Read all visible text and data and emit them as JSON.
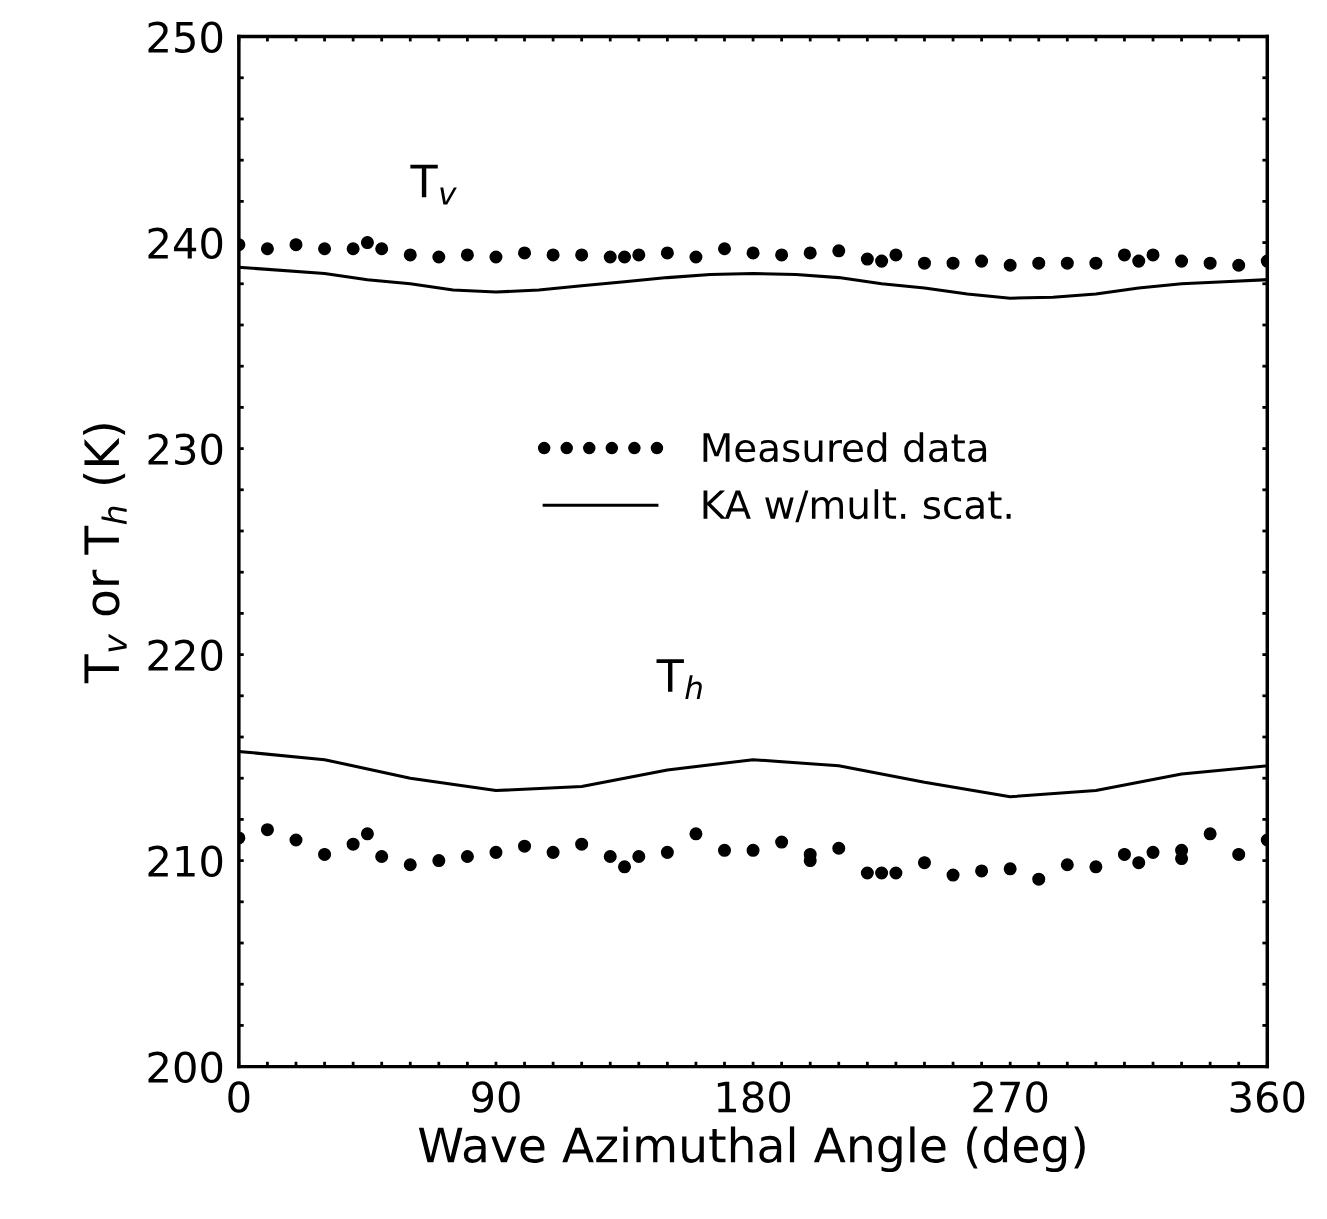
{
  "chart_data": {
    "type": "scatter",
    "xlabel": "Wave Azimuthal Angle (deg)",
    "ylabel": "T$_{v}$ or T$_{h}$ (K)",
    "xlim": [
      0,
      360
    ],
    "ylim": [
      200,
      250
    ],
    "xticks": [
      0,
      {
        "value": 10,
        "label": null
      },
      {
        "value": 20,
        "label": null
      },
      {
        "value": 30,
        "label": null
      },
      {
        "value": 40,
        "label": null
      },
      {
        "value": 50,
        "label": null
      },
      {
        "value": 60,
        "label": null
      },
      {
        "value": 70,
        "label": null
      },
      {
        "value": 80,
        "label": null
      },
      90,
      {
        "value": 100,
        "label": null
      },
      {
        "value": 110,
        "label": null
      },
      {
        "value": 120,
        "label": null
      },
      {
        "value": 130,
        "label": null
      },
      {
        "value": 140,
        "label": null
      },
      {
        "value": 150,
        "label": null
      },
      {
        "value": 160,
        "label": null
      },
      {
        "value": 170,
        "label": null
      },
      180,
      {
        "value": 190,
        "label": null
      },
      {
        "value": 200,
        "label": null
      },
      {
        "value": 210,
        "label": null
      },
      {
        "value": 220,
        "label": null
      },
      {
        "value": 230,
        "label": null
      },
      {
        "value": 240,
        "label": null
      },
      {
        "value": 250,
        "label": null
      },
      {
        "value": 260,
        "label": null
      },
      270,
      {
        "value": 280,
        "label": null
      },
      {
        "value": 290,
        "label": null
      },
      {
        "value": 300,
        "label": null
      },
      {
        "value": 310,
        "label": null
      },
      {
        "value": 320,
        "label": null
      },
      {
        "value": 330,
        "label": null
      },
      {
        "value": 340,
        "label": null
      },
      {
        "value": 350,
        "label": null
      },
      360
    ],
    "yticks": [
      200,
      {
        "value": 202,
        "label": null
      },
      {
        "value": 204,
        "label": null
      },
      {
        "value": 206,
        "label": null
      },
      {
        "value": 208,
        "label": null
      },
      210,
      {
        "value": 212,
        "label": null
      },
      {
        "value": 214,
        "label": null
      },
      {
        "value": 216,
        "label": null
      },
      {
        "value": 218,
        "label": null
      },
      220,
      {
        "value": 222,
        "label": null
      },
      {
        "value": 224,
        "label": null
      },
      {
        "value": 226,
        "label": null
      },
      {
        "value": 228,
        "label": null
      },
      230,
      {
        "value": 232,
        "label": null
      },
      {
        "value": 234,
        "label": null
      },
      {
        "value": 236,
        "label": null
      },
      {
        "value": 238,
        "label": null
      },
      240,
      {
        "value": 242,
        "label": null
      },
      {
        "value": 244,
        "label": null
      },
      {
        "value": 246,
        "label": null
      },
      {
        "value": 248,
        "label": null
      },
      250
    ],
    "grid": false,
    "legend": "center",
    "annotations": [
      "T$_{v}$",
      "T$_{h}$"
    ],
    "series": [
      {
        "name": "Measured data",
        "color": "#000000",
        "marker": "circle",
        "x": [
          0,
          10,
          20,
          30,
          40,
          45,
          50,
          60,
          70,
          80,
          90,
          100,
          110,
          120,
          130,
          135,
          140,
          150,
          160,
          170,
          180,
          190,
          200,
          210,
          220,
          225,
          230,
          240,
          250,
          260,
          270,
          280,
          290,
          300,
          310,
          315,
          320,
          330,
          340,
          350,
          360
        ],
        "values": [
          239.9,
          239.7,
          239.9,
          239.7,
          239.7,
          240.0,
          239.7,
          239.4,
          239.3,
          239.4,
          239.3,
          239.5,
          239.4,
          239.4,
          239.3,
          239.3,
          239.4,
          239.5,
          239.3,
          239.7,
          239.5,
          239.4,
          239.5,
          239.6,
          239.2,
          239.1,
          239.4,
          239.0,
          239.0,
          239.1,
          238.9,
          239.0,
          239.0,
          239.0,
          239.4,
          239.1,
          239.4,
          239.1,
          239.0,
          238.9,
          239.1
        ]
      },
      {
        "name": "KA w/mult. scat.",
        "type": "line",
        "color": "#000000",
        "marker": "none",
        "line_style": "solid",
        "x": [
          0,
          30,
          45,
          60,
          75,
          90,
          105,
          120,
          135,
          150,
          165,
          180,
          195,
          210,
          225,
          240,
          255,
          270,
          285,
          300,
          315,
          330,
          345,
          360
        ],
        "values": [
          238.8,
          238.5,
          238.2,
          238.0,
          237.7,
          237.6,
          237.7,
          237.9,
          238.1,
          238.3,
          238.45,
          238.5,
          238.45,
          238.3,
          238.0,
          237.8,
          237.5,
          237.3,
          237.35,
          237.5,
          237.8,
          238.0,
          238.1,
          238.2
        ]
      },
      {
        "color": "#000000",
        "marker": "circle",
        "x": [
          0,
          10,
          20,
          30,
          40,
          45,
          50,
          60,
          70,
          80,
          90,
          100,
          110,
          120,
          130,
          135,
          140,
          150,
          160,
          170,
          180,
          190,
          200,
          200,
          210,
          220,
          225,
          230,
          240,
          250,
          260,
          270,
          280,
          290,
          300,
          310,
          315,
          320,
          330,
          330,
          340,
          350,
          360
        ],
        "values": [
          211.1,
          211.5,
          211.0,
          210.3,
          210.8,
          211.3,
          210.2,
          209.8,
          210.0,
          210.2,
          210.4,
          210.7,
          210.4,
          210.8,
          210.2,
          209.7,
          210.2,
          210.4,
          211.3,
          210.5,
          210.5,
          210.9,
          210.3,
          210.0,
          210.6,
          209.4,
          209.4,
          209.4,
          209.9,
          209.3,
          209.5,
          209.6,
          209.1,
          209.8,
          209.7,
          210.3,
          209.9,
          210.4,
          210.5,
          210.1,
          211.3,
          210.3,
          211.0
        ]
      },
      {
        "type": "line",
        "color": "#000000",
        "marker": "none",
        "line_style": "solid",
        "x": [
          0,
          30,
          60,
          90,
          120,
          150,
          180,
          210,
          240,
          270,
          300,
          330,
          360
        ],
        "values": [
          215.3,
          214.9,
          214.0,
          213.4,
          213.6,
          214.4,
          214.9,
          214.6,
          213.8,
          213.1,
          213.4,
          214.2,
          214.6
        ]
      }
    ]
  }
}
